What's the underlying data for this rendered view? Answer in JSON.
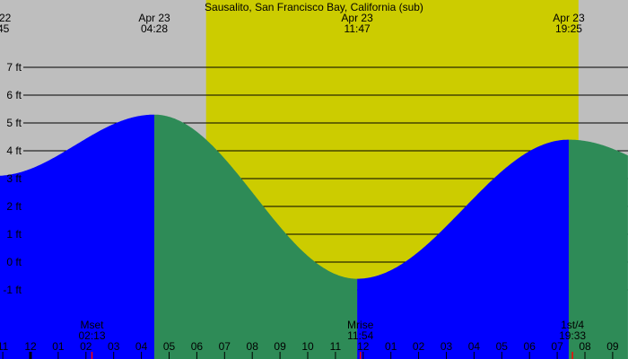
{
  "chart_data": {
    "type": "area",
    "title": "Sausalito, San Francisco Bay, California (sub)",
    "y_unit": "ft",
    "ylim": [
      -1,
      7
    ],
    "y_ticks": [
      7,
      6,
      5,
      4,
      3,
      2,
      1,
      0,
      -1
    ],
    "y_tick_labels": [
      "7 ft",
      "6 ft",
      "5 ft",
      "4 ft",
      "3 ft",
      "2 ft",
      "1 ft",
      "0 ft",
      "-1 ft"
    ],
    "grid": true,
    "x_range_hours_apr23": [
      -1.1,
      21.55
    ],
    "x_tick_labels": [
      "11",
      "12",
      "01",
      "02",
      "03",
      "04",
      "05",
      "06",
      "07",
      "08",
      "09",
      "10",
      "11",
      "12",
      "01",
      "02",
      "03",
      "04",
      "05",
      "06",
      "07",
      "08",
      "09"
    ],
    "x_tick_hours": [
      -1,
      0,
      1,
      2,
      3,
      4,
      5,
      6,
      7,
      8,
      9,
      10,
      11,
      12,
      13,
      14,
      15,
      16,
      17,
      18,
      19,
      20,
      21
    ],
    "midnight_hour": 0,
    "extremes": [
      {
        "date": "Apr 23",
        "time": "04:28",
        "height_ft": 5.3,
        "type": "high"
      },
      {
        "date": "Apr 23",
        "time": "11:47",
        "height_ft": -0.6,
        "type": "low"
      },
      {
        "date": "Apr 23",
        "time": "19:25",
        "height_ft": 4.4,
        "type": "high"
      }
    ],
    "partial_label": {
      "line1": "22",
      "line2": "45"
    },
    "daylight": {
      "start": "06:20",
      "end": "19:46"
    },
    "moon_events": [
      {
        "label": "Mset",
        "time": "02:13"
      },
      {
        "label": "Mrise",
        "time": "11:54"
      },
      {
        "label": "1st/4",
        "time": "19:33"
      }
    ],
    "colors": {
      "night": "#bebebe",
      "day": "#cccc00",
      "rising": "#0000ff",
      "falling": "#2e8b57",
      "moon_marker": "#ff0000"
    }
  }
}
